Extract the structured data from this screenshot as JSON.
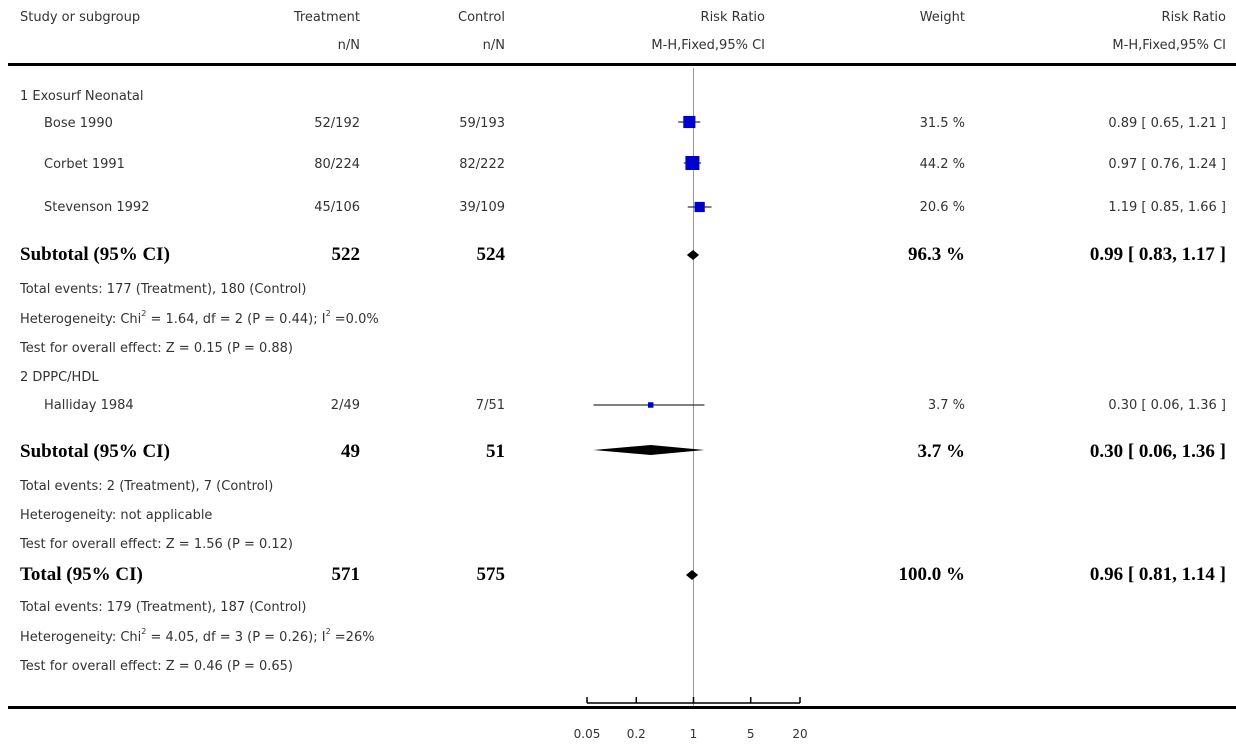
{
  "header": {
    "study_col": "Study or subgroup",
    "treatment_col": "Treatment",
    "treatment_sub": "n/N",
    "control_col": "Control",
    "control_sub": "n/N",
    "rr_plot_col": "Risk Ratio",
    "rr_plot_sub": "M-H,Fixed,95% CI",
    "weight_col": "Weight",
    "rr_col": "Risk Ratio",
    "rr_sub": "M-H,Fixed,95% CI"
  },
  "groups": [
    {
      "label": "1 Exosurf Neonatal",
      "studies": [
        {
          "name": "Bose 1990",
          "treatment": "52/192",
          "control": "59/193",
          "weight": "31.5 %",
          "ci_text": "0.89 [ 0.65, 1.21 ]"
        },
        {
          "name": "Corbet 1991",
          "treatment": "80/224",
          "control": "82/222",
          "weight": "44.2 %",
          "ci_text": "0.97 [ 0.76, 1.24 ]"
        },
        {
          "name": "Stevenson 1992",
          "treatment": "45/106",
          "control": "39/109",
          "weight": "20.6 %",
          "ci_text": "1.19 [ 0.85, 1.66 ]"
        }
      ],
      "subtotal": {
        "label": "Subtotal (95% CI)",
        "treatment": "522",
        "control": "524",
        "weight": "96.3 %",
        "ci_text": "0.99 [ 0.83, 1.17 ]"
      },
      "events": "Total events: 177 (Treatment), 180 (Control)",
      "het_pre": "Heterogeneity: Chi",
      "het_mid": " = 1.64, df = 2 (P = 0.44); I",
      "het_post": " =0.0%",
      "overall": "Test for overall effect: Z = 0.15 (P = 0.88)"
    },
    {
      "label": "2 DPPC/HDL",
      "studies": [
        {
          "name": "Halliday 1984",
          "treatment": "2/49",
          "control": "7/51",
          "weight": "3.7 %",
          "ci_text": "0.30 [ 0.06, 1.36 ]"
        }
      ],
      "subtotal": {
        "label": "Subtotal (95% CI)",
        "treatment": "49",
        "control": "51",
        "weight": "3.7 %",
        "ci_text": "0.30 [ 0.06, 1.36 ]"
      },
      "events": "Total events: 2 (Treatment), 7 (Control)",
      "het": "Heterogeneity: not applicable",
      "overall": "Test for overall effect: Z = 1.56 (P = 0.12)"
    }
  ],
  "total": {
    "label": "Total (95% CI)",
    "treatment": "571",
    "control": "575",
    "weight": "100.0 %",
    "ci_text": "0.96 [ 0.81, 1.14 ]",
    "events": "Total events: 179 (Treatment), 187 (Control)",
    "het_pre": "Heterogeneity: Chi",
    "het_mid": " = 4.05, df = 3 (P = 0.26); I",
    "het_post": " =26%",
    "overall": "Test for overall effect: Z = 0.46 (P = 0.65)"
  },
  "sup2": "2",
  "axis_ticks": [
    "0.05",
    "0.2",
    "1",
    "5",
    "20"
  ],
  "colors": {
    "study_marker": "#0000cc",
    "summary": "#000000",
    "null_line": "#999999"
  },
  "chart_data": {
    "type": "forest",
    "scale": "log",
    "xlim": [
      0.05,
      20
    ],
    "null_value": 1,
    "ticks": [
      0.05,
      0.2,
      1,
      5,
      20
    ],
    "studies": [
      {
        "name": "Bose 1990",
        "rr": 0.89,
        "lo": 0.65,
        "hi": 1.21,
        "weight": 31.5
      },
      {
        "name": "Corbet 1991",
        "rr": 0.97,
        "lo": 0.76,
        "hi": 1.24,
        "weight": 44.2
      },
      {
        "name": "Stevenson 1992",
        "rr": 1.19,
        "lo": 0.85,
        "hi": 1.66,
        "weight": 20.6
      },
      {
        "name": "Halliday 1984",
        "rr": 0.3,
        "lo": 0.06,
        "hi": 1.36,
        "weight": 3.7
      }
    ],
    "summaries": [
      {
        "name": "Subtotal (95% CI)",
        "group": "1 Exosurf Neonatal",
        "rr": 0.99,
        "lo": 0.83,
        "hi": 1.17
      },
      {
        "name": "Subtotal (95% CI)",
        "group": "2 DPPC/HDL",
        "rr": 0.3,
        "lo": 0.06,
        "hi": 1.36
      },
      {
        "name": "Total (95% CI)",
        "rr": 0.96,
        "lo": 0.81,
        "hi": 1.14
      }
    ]
  }
}
